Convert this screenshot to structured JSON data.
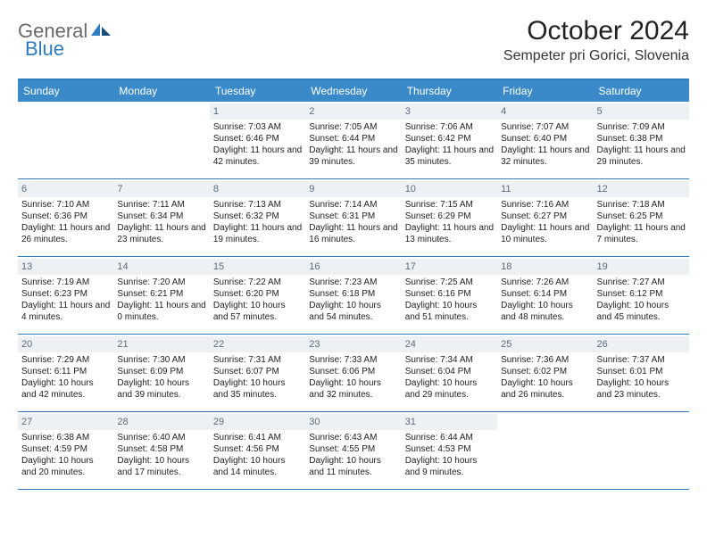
{
  "logo": {
    "part1": "General",
    "part2": "Blue"
  },
  "title": "October 2024",
  "location": "Sempeter pri Gorici, Slovenia",
  "colors": {
    "header_bg": "#3a8ac9",
    "accent": "#2f7bbf",
    "daynum_bg": "#eef1f4",
    "daynum_text": "#5c6b7a",
    "logo_gray": "#6a6a6a",
    "logo_blue": "#2f7bbf",
    "body_text": "#222222",
    "background": "#ffffff"
  },
  "typography": {
    "title_fontsize": 30,
    "location_fontsize": 16,
    "dayhead_fontsize": 12,
    "daynum_fontsize": 11,
    "detail_fontsize": 10,
    "logo_fontsize": 22
  },
  "dayHeaders": [
    "Sunday",
    "Monday",
    "Tuesday",
    "Wednesday",
    "Thursday",
    "Friday",
    "Saturday"
  ],
  "weeks": [
    [
      null,
      null,
      {
        "n": "1",
        "sunrise": "Sunrise: 7:03 AM",
        "sunset": "Sunset: 6:46 PM",
        "daylight": "Daylight: 11 hours and 42 minutes."
      },
      {
        "n": "2",
        "sunrise": "Sunrise: 7:05 AM",
        "sunset": "Sunset: 6:44 PM",
        "daylight": "Daylight: 11 hours and 39 minutes."
      },
      {
        "n": "3",
        "sunrise": "Sunrise: 7:06 AM",
        "sunset": "Sunset: 6:42 PM",
        "daylight": "Daylight: 11 hours and 35 minutes."
      },
      {
        "n": "4",
        "sunrise": "Sunrise: 7:07 AM",
        "sunset": "Sunset: 6:40 PM",
        "daylight": "Daylight: 11 hours and 32 minutes."
      },
      {
        "n": "5",
        "sunrise": "Sunrise: 7:09 AM",
        "sunset": "Sunset: 6:38 PM",
        "daylight": "Daylight: 11 hours and 29 minutes."
      }
    ],
    [
      {
        "n": "6",
        "sunrise": "Sunrise: 7:10 AM",
        "sunset": "Sunset: 6:36 PM",
        "daylight": "Daylight: 11 hours and 26 minutes."
      },
      {
        "n": "7",
        "sunrise": "Sunrise: 7:11 AM",
        "sunset": "Sunset: 6:34 PM",
        "daylight": "Daylight: 11 hours and 23 minutes."
      },
      {
        "n": "8",
        "sunrise": "Sunrise: 7:13 AM",
        "sunset": "Sunset: 6:32 PM",
        "daylight": "Daylight: 11 hours and 19 minutes."
      },
      {
        "n": "9",
        "sunrise": "Sunrise: 7:14 AM",
        "sunset": "Sunset: 6:31 PM",
        "daylight": "Daylight: 11 hours and 16 minutes."
      },
      {
        "n": "10",
        "sunrise": "Sunrise: 7:15 AM",
        "sunset": "Sunset: 6:29 PM",
        "daylight": "Daylight: 11 hours and 13 minutes."
      },
      {
        "n": "11",
        "sunrise": "Sunrise: 7:16 AM",
        "sunset": "Sunset: 6:27 PM",
        "daylight": "Daylight: 11 hours and 10 minutes."
      },
      {
        "n": "12",
        "sunrise": "Sunrise: 7:18 AM",
        "sunset": "Sunset: 6:25 PM",
        "daylight": "Daylight: 11 hours and 7 minutes."
      }
    ],
    [
      {
        "n": "13",
        "sunrise": "Sunrise: 7:19 AM",
        "sunset": "Sunset: 6:23 PM",
        "daylight": "Daylight: 11 hours and 4 minutes."
      },
      {
        "n": "14",
        "sunrise": "Sunrise: 7:20 AM",
        "sunset": "Sunset: 6:21 PM",
        "daylight": "Daylight: 11 hours and 0 minutes."
      },
      {
        "n": "15",
        "sunrise": "Sunrise: 7:22 AM",
        "sunset": "Sunset: 6:20 PM",
        "daylight": "Daylight: 10 hours and 57 minutes."
      },
      {
        "n": "16",
        "sunrise": "Sunrise: 7:23 AM",
        "sunset": "Sunset: 6:18 PM",
        "daylight": "Daylight: 10 hours and 54 minutes."
      },
      {
        "n": "17",
        "sunrise": "Sunrise: 7:25 AM",
        "sunset": "Sunset: 6:16 PM",
        "daylight": "Daylight: 10 hours and 51 minutes."
      },
      {
        "n": "18",
        "sunrise": "Sunrise: 7:26 AM",
        "sunset": "Sunset: 6:14 PM",
        "daylight": "Daylight: 10 hours and 48 minutes."
      },
      {
        "n": "19",
        "sunrise": "Sunrise: 7:27 AM",
        "sunset": "Sunset: 6:12 PM",
        "daylight": "Daylight: 10 hours and 45 minutes."
      }
    ],
    [
      {
        "n": "20",
        "sunrise": "Sunrise: 7:29 AM",
        "sunset": "Sunset: 6:11 PM",
        "daylight": "Daylight: 10 hours and 42 minutes."
      },
      {
        "n": "21",
        "sunrise": "Sunrise: 7:30 AM",
        "sunset": "Sunset: 6:09 PM",
        "daylight": "Daylight: 10 hours and 39 minutes."
      },
      {
        "n": "22",
        "sunrise": "Sunrise: 7:31 AM",
        "sunset": "Sunset: 6:07 PM",
        "daylight": "Daylight: 10 hours and 35 minutes."
      },
      {
        "n": "23",
        "sunrise": "Sunrise: 7:33 AM",
        "sunset": "Sunset: 6:06 PM",
        "daylight": "Daylight: 10 hours and 32 minutes."
      },
      {
        "n": "24",
        "sunrise": "Sunrise: 7:34 AM",
        "sunset": "Sunset: 6:04 PM",
        "daylight": "Daylight: 10 hours and 29 minutes."
      },
      {
        "n": "25",
        "sunrise": "Sunrise: 7:36 AM",
        "sunset": "Sunset: 6:02 PM",
        "daylight": "Daylight: 10 hours and 26 minutes."
      },
      {
        "n": "26",
        "sunrise": "Sunrise: 7:37 AM",
        "sunset": "Sunset: 6:01 PM",
        "daylight": "Daylight: 10 hours and 23 minutes."
      }
    ],
    [
      {
        "n": "27",
        "sunrise": "Sunrise: 6:38 AM",
        "sunset": "Sunset: 4:59 PM",
        "daylight": "Daylight: 10 hours and 20 minutes."
      },
      {
        "n": "28",
        "sunrise": "Sunrise: 6:40 AM",
        "sunset": "Sunset: 4:58 PM",
        "daylight": "Daylight: 10 hours and 17 minutes."
      },
      {
        "n": "29",
        "sunrise": "Sunrise: 6:41 AM",
        "sunset": "Sunset: 4:56 PM",
        "daylight": "Daylight: 10 hours and 14 minutes."
      },
      {
        "n": "30",
        "sunrise": "Sunrise: 6:43 AM",
        "sunset": "Sunset: 4:55 PM",
        "daylight": "Daylight: 10 hours and 11 minutes."
      },
      {
        "n": "31",
        "sunrise": "Sunrise: 6:44 AM",
        "sunset": "Sunset: 4:53 PM",
        "daylight": "Daylight: 10 hours and 9 minutes."
      },
      null,
      null
    ]
  ]
}
